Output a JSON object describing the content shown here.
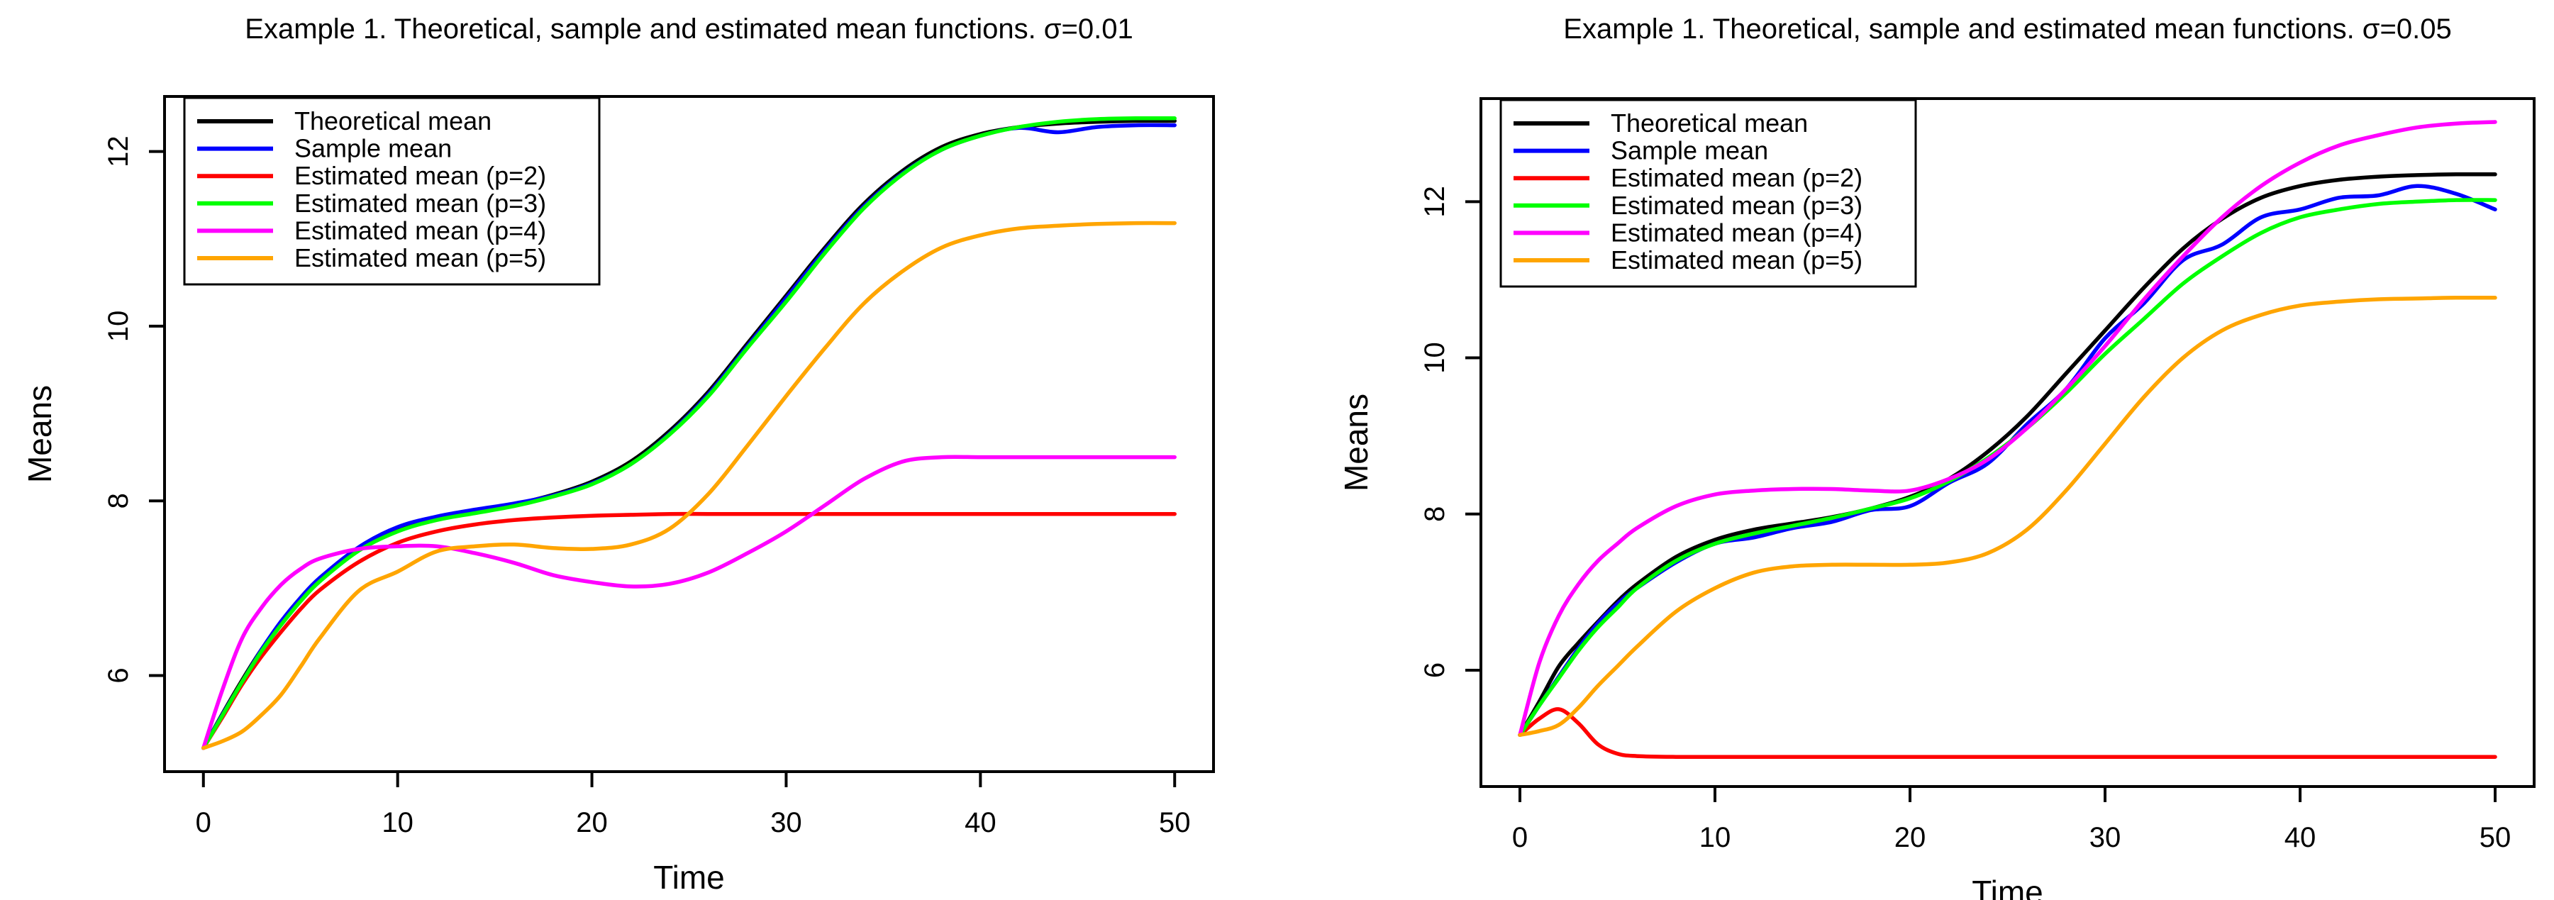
{
  "page": {
    "background": "#ffffff",
    "description_labels": {
      "left_panel": "panel-sigma-0.01",
      "right_panel": "panel-sigma-0.05"
    }
  },
  "chart_data": [
    {
      "type": "line",
      "title": "Example 1. Theoretical, sample and estimated mean functions. σ=0.01",
      "xlabel": "Time",
      "ylabel": "Means",
      "xlim": [
        -2,
        52
      ],
      "ylim": [
        4.9,
        12.63
      ],
      "xticks": [
        0,
        10,
        20,
        30,
        40,
        50
      ],
      "yticks": [
        6,
        8,
        10,
        12
      ],
      "grid": false,
      "legend_position": "top-left",
      "x": [
        0,
        1,
        2,
        3,
        4,
        5,
        6,
        8,
        10,
        12,
        14,
        16,
        18,
        20,
        22,
        24,
        26,
        28,
        30,
        32,
        34,
        36,
        38,
        40,
        42,
        44,
        46,
        48,
        50
      ],
      "series": [
        {
          "name": "Theoretical mean",
          "color": "#000000",
          "values": [
            5.17,
            5.57,
            5.95,
            6.3,
            6.6,
            6.87,
            7.1,
            7.45,
            7.67,
            7.8,
            7.88,
            7.96,
            8.07,
            8.22,
            8.45,
            8.8,
            9.25,
            9.8,
            10.35,
            10.9,
            11.4,
            11.78,
            12.05,
            12.2,
            12.28,
            12.32,
            12.34,
            12.35,
            12.35
          ]
        },
        {
          "name": "Sample mean",
          "color": "#0000ff",
          "values": [
            5.17,
            5.56,
            5.93,
            6.3,
            6.62,
            6.89,
            7.12,
            7.47,
            7.7,
            7.82,
            7.9,
            7.97,
            8.06,
            8.2,
            8.42,
            8.77,
            9.22,
            9.77,
            10.32,
            10.87,
            11.37,
            11.75,
            12.02,
            12.18,
            12.27,
            12.22,
            12.28,
            12.3,
            12.3
          ]
        },
        {
          "name": "Estimated mean (p=2)",
          "color": "#ff0000",
          "values": [
            5.17,
            5.53,
            5.9,
            6.22,
            6.5,
            6.76,
            6.98,
            7.3,
            7.52,
            7.65,
            7.73,
            7.78,
            7.81,
            7.83,
            7.84,
            7.85,
            7.85,
            7.85,
            7.85,
            7.85,
            7.85,
            7.85,
            7.85,
            7.85,
            7.85,
            7.85,
            7.85,
            7.85,
            7.85
          ]
        },
        {
          "name": "Estimated mean (p=3)",
          "color": "#00ff00",
          "values": [
            5.17,
            5.55,
            5.93,
            6.28,
            6.58,
            6.85,
            7.08,
            7.43,
            7.65,
            7.78,
            7.86,
            7.94,
            8.05,
            8.19,
            8.42,
            8.76,
            9.2,
            9.75,
            10.28,
            10.84,
            11.35,
            11.74,
            12.02,
            12.18,
            12.28,
            12.34,
            12.37,
            12.38,
            12.38
          ]
        },
        {
          "name": "Estimated mean (p=4)",
          "color": "#ff00ff",
          "values": [
            5.17,
            5.85,
            6.43,
            6.78,
            7.04,
            7.22,
            7.34,
            7.45,
            7.48,
            7.48,
            7.4,
            7.29,
            7.15,
            7.07,
            7.02,
            7.05,
            7.18,
            7.4,
            7.65,
            7.95,
            8.25,
            8.45,
            8.5,
            8.5,
            8.5,
            8.5,
            8.5,
            8.5,
            8.5
          ]
        },
        {
          "name": "Estimated mean (p=5)",
          "color": "#ffa500",
          "values": [
            5.17,
            5.25,
            5.36,
            5.55,
            5.78,
            6.1,
            6.43,
            6.97,
            7.19,
            7.42,
            7.48,
            7.5,
            7.46,
            7.45,
            7.5,
            7.68,
            8.08,
            8.63,
            9.2,
            9.75,
            10.26,
            10.63,
            10.9,
            11.04,
            11.12,
            11.15,
            11.17,
            11.18,
            11.18
          ]
        }
      ]
    },
    {
      "type": "line",
      "title": "Example 1. Theoretical, sample and estimated mean functions. σ=0.05",
      "xlabel": "Time",
      "ylabel": "Means",
      "xlim": [
        -2,
        52
      ],
      "ylim": [
        4.51,
        13.32
      ],
      "xticks": [
        0,
        10,
        20,
        30,
        40,
        50
      ],
      "yticks": [
        6,
        8,
        10,
        12
      ],
      "grid": false,
      "legend_position": "top-left",
      "x": [
        0,
        1,
        2,
        3,
        4,
        5,
        6,
        8,
        10,
        12,
        14,
        16,
        18,
        20,
        22,
        24,
        26,
        28,
        30,
        32,
        34,
        36,
        38,
        40,
        42,
        44,
        46,
        48,
        50
      ],
      "series": [
        {
          "name": "Theoretical mean",
          "color": "#000000",
          "values": [
            5.17,
            5.6,
            6.05,
            6.35,
            6.62,
            6.88,
            7.1,
            7.45,
            7.67,
            7.8,
            7.88,
            7.96,
            8.07,
            8.22,
            8.45,
            8.8,
            9.25,
            9.8,
            10.35,
            10.9,
            11.4,
            11.78,
            12.05,
            12.2,
            12.28,
            12.32,
            12.34,
            12.35,
            12.35
          ]
        },
        {
          "name": "Sample mean",
          "color": "#0000ff",
          "values": [
            5.17,
            5.55,
            5.92,
            6.28,
            6.6,
            6.85,
            7.05,
            7.38,
            7.62,
            7.7,
            7.82,
            7.9,
            8.05,
            8.1,
            8.4,
            8.65,
            9.15,
            9.6,
            10.25,
            10.7,
            11.25,
            11.45,
            11.8,
            11.9,
            12.05,
            12.08,
            12.2,
            12.1,
            11.9
          ]
        },
        {
          "name": "Estimated mean (p=2)",
          "color": "#ff0000",
          "values": [
            5.17,
            5.38,
            5.5,
            5.32,
            5.05,
            4.93,
            4.9,
            4.89,
            4.89,
            4.89,
            4.89,
            4.89,
            4.89,
            4.89,
            4.89,
            4.89,
            4.89,
            4.89,
            4.89,
            4.89,
            4.89,
            4.89,
            4.89,
            4.89,
            4.89,
            4.89,
            4.89,
            4.89,
            4.89
          ]
        },
        {
          "name": "Estimated mean (p=3)",
          "color": "#00ff00",
          "values": [
            5.17,
            5.55,
            5.9,
            6.25,
            6.55,
            6.8,
            7.05,
            7.4,
            7.62,
            7.75,
            7.85,
            7.95,
            8.07,
            8.2,
            8.42,
            8.72,
            9.1,
            9.55,
            10.05,
            10.5,
            10.95,
            11.3,
            11.6,
            11.8,
            11.9,
            11.97,
            12.0,
            12.02,
            12.02
          ]
        },
        {
          "name": "Estimated mean (p=4)",
          "color": "#ff00ff",
          "values": [
            5.17,
            6.1,
            6.7,
            7.1,
            7.4,
            7.62,
            7.82,
            8.1,
            8.25,
            8.3,
            8.32,
            8.32,
            8.3,
            8.3,
            8.45,
            8.7,
            9.1,
            9.6,
            10.15,
            10.75,
            11.3,
            11.8,
            12.2,
            12.5,
            12.72,
            12.85,
            12.95,
            13.0,
            13.02
          ]
        },
        {
          "name": "Estimated mean (p=5)",
          "color": "#ffa500",
          "values": [
            5.17,
            5.22,
            5.3,
            5.52,
            5.8,
            6.05,
            6.3,
            6.75,
            7.05,
            7.25,
            7.33,
            7.35,
            7.35,
            7.35,
            7.38,
            7.5,
            7.8,
            8.3,
            8.9,
            9.5,
            10.0,
            10.35,
            10.55,
            10.67,
            10.72,
            10.75,
            10.76,
            10.77,
            10.77
          ]
        }
      ]
    }
  ]
}
